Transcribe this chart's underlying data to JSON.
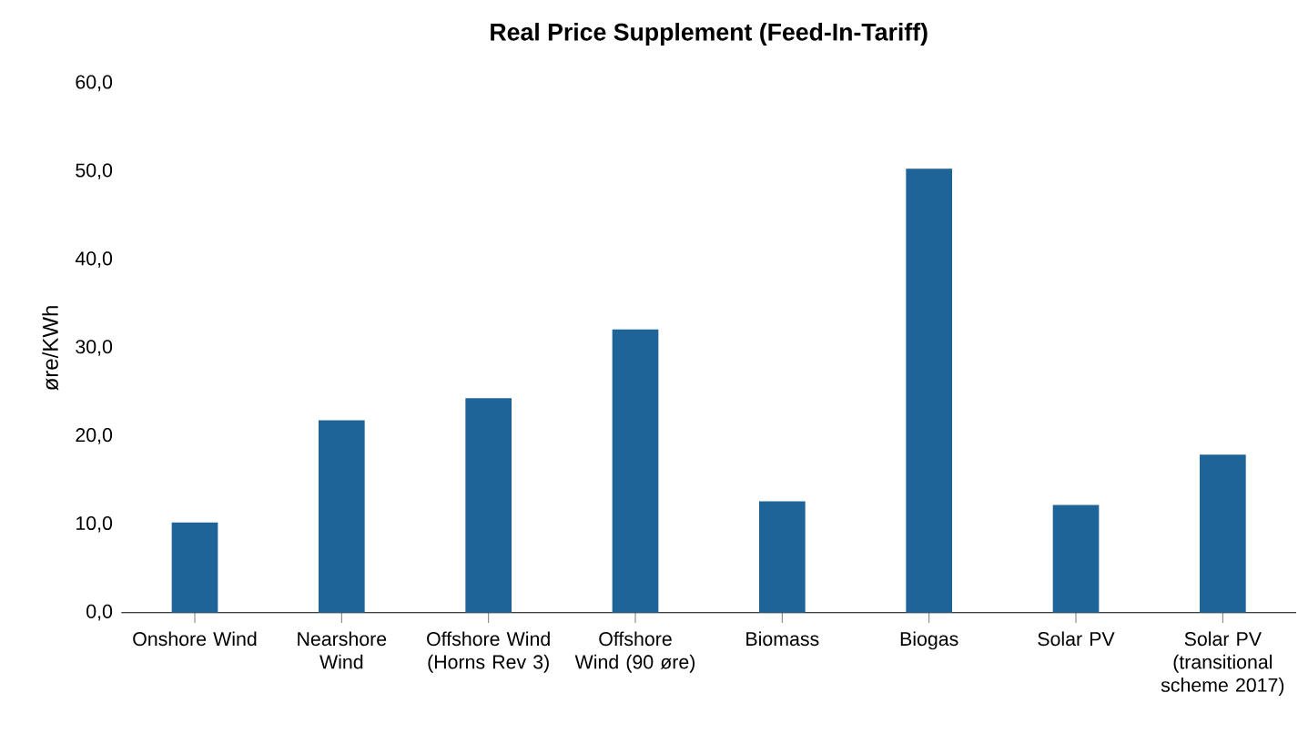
{
  "chart_data": {
    "type": "bar",
    "title": "Real Price Supplement (Feed-In-Tariff)",
    "ylabel": "øre/KWh",
    "categories": [
      "Onshore Wind",
      "Nearshore Wind",
      "Offshore Wind (Horns Rev 3)",
      "Offshore Wind (90 øre)",
      "Biomass",
      "Biogas",
      "Solar PV",
      "Solar PV (transitional scheme 2017)"
    ],
    "values": [
      10.2,
      21.8,
      24.3,
      32.1,
      12.6,
      50.3,
      12.2,
      17.9
    ],
    "color": "#1f6499",
    "ylim": [
      0,
      60
    ],
    "yticks": [
      {
        "value": 0,
        "label": "0,0"
      },
      {
        "value": 10,
        "label": "10,0"
      },
      {
        "value": 20,
        "label": "20,0"
      },
      {
        "value": 30,
        "label": "30,0"
      },
      {
        "value": 40,
        "label": "40,0"
      },
      {
        "value": 50,
        "label": "50,0"
      },
      {
        "value": 60,
        "label": "60,0"
      }
    ],
    "grid": false
  }
}
